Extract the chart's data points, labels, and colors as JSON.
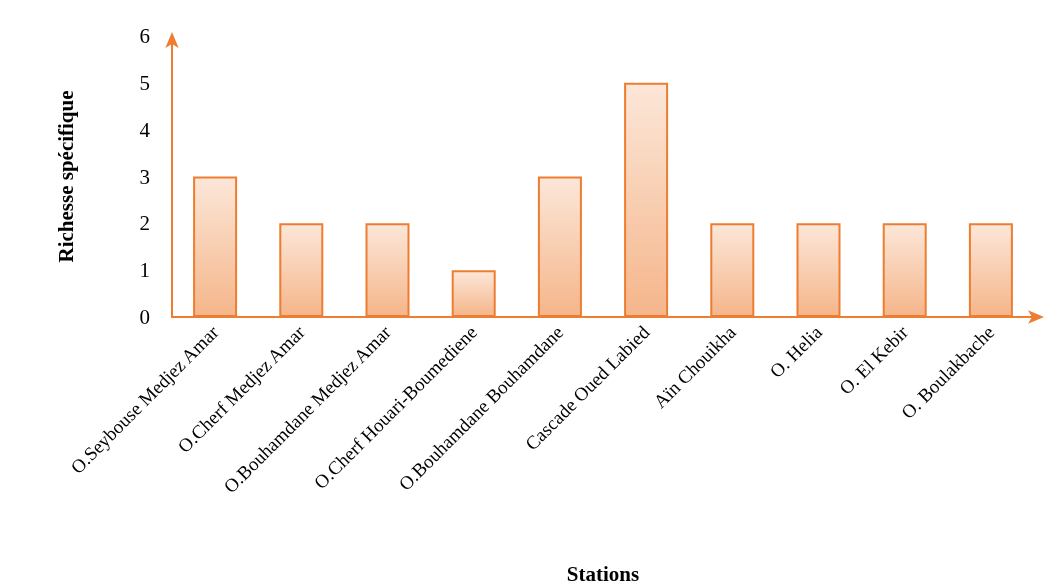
{
  "chart_data": {
    "type": "bar",
    "xlabel": "Stations",
    "ylabel": "Richesse spécifique",
    "categories": [
      "O.Seybouse Medjez Amar",
      "O.Cherf Medjez Amar",
      "O.Bouhamdane Medjez Amar",
      "O.Cherf Houari-Boumediene",
      "O.Bouhamdane Bouhamdane",
      "Cascade Oued Labied",
      "Aïn Chouikha",
      "O. Helia",
      "O. El Kebir",
      "O. Boulakbache"
    ],
    "values": [
      3,
      2,
      2,
      1,
      3,
      5,
      2,
      2,
      2,
      2
    ],
    "color": "#ed7d31",
    "ylim": [
      0,
      6
    ],
    "yticks": [
      0,
      1,
      2,
      3,
      4,
      5,
      6
    ],
    "grid": false
  }
}
